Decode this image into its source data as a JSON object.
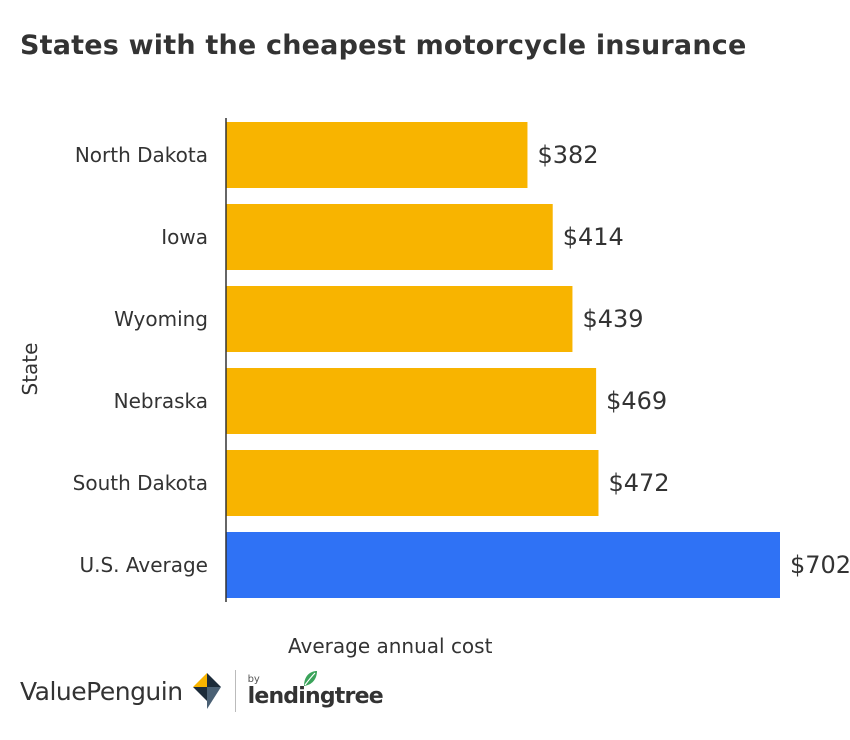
{
  "chart_data": {
    "type": "bar",
    "orientation": "horizontal",
    "title": "States with the cheapest motorcycle insurance",
    "xlabel": "Average annual cost",
    "ylabel": "State",
    "categories": [
      "North Dakota",
      "Iowa",
      "Wyoming",
      "Nebraska",
      "South Dakota",
      "U.S. Average"
    ],
    "values": [
      382,
      414,
      439,
      469,
      472,
      702
    ],
    "data_labels": [
      "$382",
      "$414",
      "$439",
      "$469",
      "$472",
      "$702"
    ],
    "bar_colors": [
      "#F8B400",
      "#F8B400",
      "#F8B400",
      "#F8B400",
      "#F8B400",
      "#2F72F5"
    ],
    "xlim": [
      0,
      702
    ],
    "grid": false,
    "legend": "none"
  },
  "footer": {
    "brand": "ValuePenguin",
    "partner_prefix": "by",
    "partner": "lendingtree"
  },
  "colors": {
    "state_bar": "#F8B400",
    "average_bar": "#2F72F5",
    "text": "#333333"
  }
}
